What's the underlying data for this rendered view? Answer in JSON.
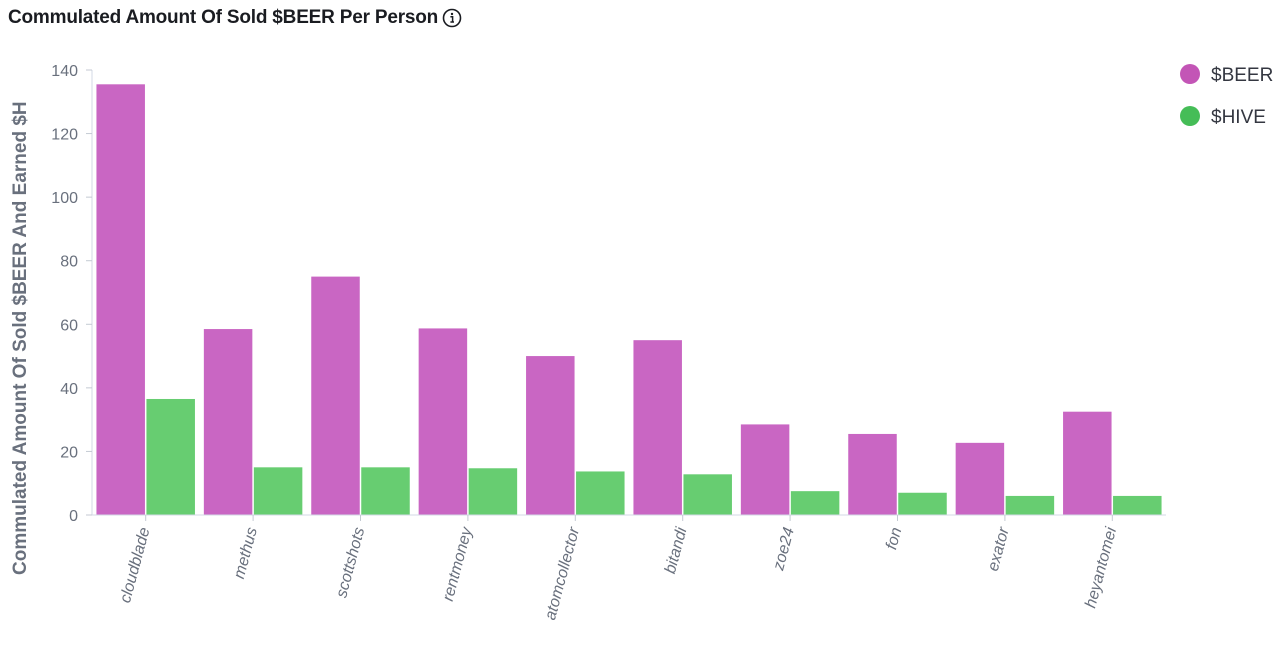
{
  "title": "Commulated Amount Of Sold $BEER Per Person",
  "chart_data": {
    "type": "bar",
    "title": "Commulated Amount Of Sold $BEER Per Person",
    "ylabel": "Commulated Amount Of Sold $BEER And Earned $H",
    "xlabel": "",
    "ylim": [
      0,
      140
    ],
    "yticks": [
      0,
      20,
      40,
      60,
      80,
      100,
      120,
      140
    ],
    "categories": [
      "cloudblade",
      "methus",
      "scottshots",
      "rentmoney",
      "atomcollector",
      "bitandi",
      "zoe24",
      "fon",
      "exator",
      "heyantomei"
    ],
    "series": [
      {
        "name": "$BEER",
        "color": "#c966c3",
        "values": [
          135.5,
          58.5,
          75,
          58.7,
          50,
          55,
          28.5,
          25.5,
          22.7,
          32.5
        ]
      },
      {
        "name": "$HIVE",
        "color": "#67cd71",
        "values": [
          36.5,
          15,
          15,
          14.7,
          13.7,
          12.8,
          7.5,
          7,
          6,
          6
        ]
      }
    ],
    "legend": {
      "position": "right",
      "swatch_colors": [
        "#c355b6",
        "#45bd57"
      ]
    },
    "grid": false
  }
}
